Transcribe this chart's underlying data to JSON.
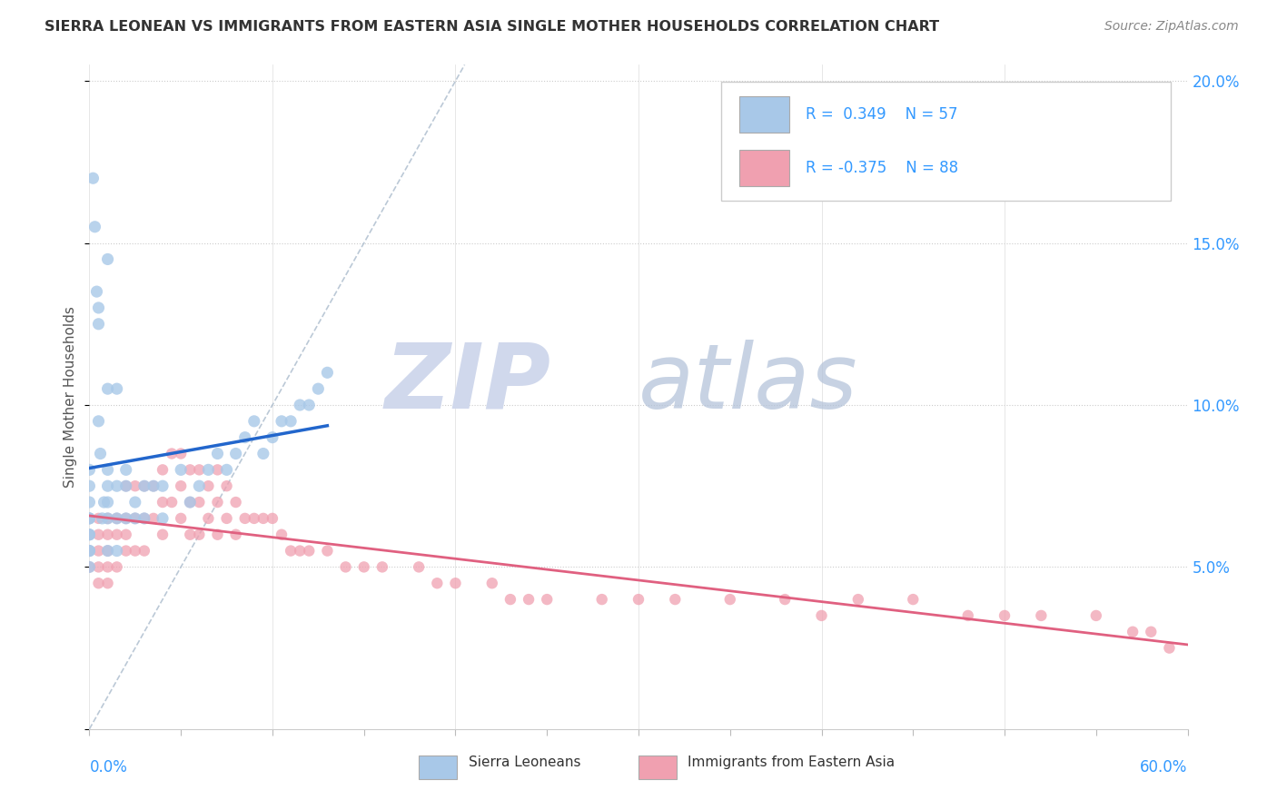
{
  "title": "SIERRA LEONEAN VS IMMIGRANTS FROM EASTERN ASIA SINGLE MOTHER HOUSEHOLDS CORRELATION CHART",
  "source": "Source: ZipAtlas.com",
  "ylabel": "Single Mother Households",
  "xmin": 0.0,
  "xmax": 0.6,
  "ymin": 0.0,
  "ymax": 0.205,
  "yticks": [
    0.0,
    0.05,
    0.1,
    0.15,
    0.2
  ],
  "right_ytick_labels": [
    "",
    "5.0%",
    "10.0%",
    "15.0%",
    "20.0%"
  ],
  "color_blue_scatter": "#a8c8e8",
  "color_blue_line": "#2266cc",
  "color_pink_scatter": "#f0a0b0",
  "color_pink_line": "#e06080",
  "watermark_zip_color": "#d0d8e8",
  "watermark_atlas_color": "#b8c8d8",
  "blue_scatter_x": [
    0.0,
    0.0,
    0.0,
    0.0,
    0.0,
    0.0,
    0.0,
    0.0,
    0.0,
    0.0,
    0.002,
    0.003,
    0.004,
    0.005,
    0.005,
    0.005,
    0.006,
    0.007,
    0.008,
    0.01,
    0.01,
    0.01,
    0.01,
    0.01,
    0.01,
    0.01,
    0.015,
    0.015,
    0.015,
    0.015,
    0.02,
    0.02,
    0.02,
    0.025,
    0.025,
    0.03,
    0.03,
    0.035,
    0.04,
    0.04,
    0.05,
    0.055,
    0.06,
    0.065,
    0.07,
    0.075,
    0.08,
    0.085,
    0.09,
    0.095,
    0.1,
    0.105,
    0.11,
    0.115,
    0.12,
    0.125,
    0.13
  ],
  "blue_scatter_y": [
    0.065,
    0.07,
    0.075,
    0.08,
    0.065,
    0.06,
    0.055,
    0.05,
    0.055,
    0.06,
    0.17,
    0.155,
    0.135,
    0.13,
    0.125,
    0.095,
    0.085,
    0.065,
    0.07,
    0.145,
    0.105,
    0.08,
    0.075,
    0.07,
    0.065,
    0.055,
    0.105,
    0.075,
    0.065,
    0.055,
    0.08,
    0.075,
    0.065,
    0.07,
    0.065,
    0.075,
    0.065,
    0.075,
    0.075,
    0.065,
    0.08,
    0.07,
    0.075,
    0.08,
    0.085,
    0.08,
    0.085,
    0.09,
    0.095,
    0.085,
    0.09,
    0.095,
    0.095,
    0.1,
    0.1,
    0.105,
    0.11
  ],
  "pink_scatter_x": [
    0.0,
    0.0,
    0.0,
    0.0,
    0.005,
    0.005,
    0.005,
    0.005,
    0.005,
    0.01,
    0.01,
    0.01,
    0.01,
    0.01,
    0.015,
    0.015,
    0.015,
    0.02,
    0.02,
    0.02,
    0.02,
    0.025,
    0.025,
    0.025,
    0.03,
    0.03,
    0.03,
    0.035,
    0.035,
    0.04,
    0.04,
    0.04,
    0.045,
    0.045,
    0.05,
    0.05,
    0.05,
    0.055,
    0.055,
    0.055,
    0.06,
    0.06,
    0.06,
    0.065,
    0.065,
    0.07,
    0.07,
    0.07,
    0.075,
    0.075,
    0.08,
    0.08,
    0.085,
    0.09,
    0.095,
    0.1,
    0.105,
    0.11,
    0.115,
    0.12,
    0.13,
    0.14,
    0.15,
    0.16,
    0.18,
    0.19,
    0.2,
    0.22,
    0.23,
    0.24,
    0.25,
    0.28,
    0.3,
    0.32,
    0.35,
    0.38,
    0.4,
    0.42,
    0.45,
    0.48,
    0.5,
    0.52,
    0.55,
    0.57,
    0.58,
    0.59
  ],
  "pink_scatter_y": [
    0.065,
    0.06,
    0.055,
    0.05,
    0.065,
    0.06,
    0.055,
    0.05,
    0.045,
    0.065,
    0.06,
    0.055,
    0.05,
    0.045,
    0.065,
    0.06,
    0.05,
    0.075,
    0.065,
    0.06,
    0.055,
    0.075,
    0.065,
    0.055,
    0.075,
    0.065,
    0.055,
    0.075,
    0.065,
    0.08,
    0.07,
    0.06,
    0.085,
    0.07,
    0.085,
    0.075,
    0.065,
    0.08,
    0.07,
    0.06,
    0.08,
    0.07,
    0.06,
    0.075,
    0.065,
    0.08,
    0.07,
    0.06,
    0.075,
    0.065,
    0.07,
    0.06,
    0.065,
    0.065,
    0.065,
    0.065,
    0.06,
    0.055,
    0.055,
    0.055,
    0.055,
    0.05,
    0.05,
    0.05,
    0.05,
    0.045,
    0.045,
    0.045,
    0.04,
    0.04,
    0.04,
    0.04,
    0.04,
    0.04,
    0.04,
    0.04,
    0.035,
    0.04,
    0.04,
    0.035,
    0.035,
    0.035,
    0.035,
    0.03,
    0.03,
    0.025
  ]
}
